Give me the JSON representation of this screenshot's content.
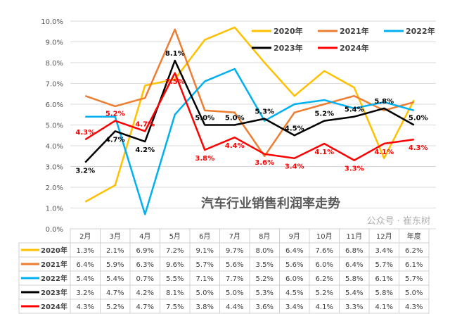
{
  "chart_data": {
    "type": "line",
    "title": "汽车行业销售利润率走势",
    "categories": [
      "2月",
      "3月",
      "4月",
      "5月",
      "6月",
      "7月",
      "8月",
      "9月",
      "10月",
      "11月",
      "12月",
      "年度"
    ],
    "ylim": [
      0,
      10
    ],
    "yticks": [
      "0.0%",
      "1.0%",
      "2.0%",
      "3.0%",
      "4.0%",
      "5.0%",
      "6.0%",
      "7.0%",
      "8.0%",
      "9.0%",
      "10.0%"
    ],
    "grid": true,
    "legend_placement": "top-right",
    "series": [
      {
        "name": "2020年",
        "color": "#FFC000",
        "values": [
          1.3,
          2.1,
          6.9,
          7.2,
          9.1,
          9.7,
          8.0,
          6.4,
          7.6,
          6.8,
          3.4,
          6.2
        ],
        "labels": [
          "1.3%",
          "2.1%",
          "6.9%",
          "7.2%",
          "9.1%",
          "9.7%",
          "8.0%",
          "6.4%",
          "7.6%",
          "6.8%",
          "3.4%",
          "6.2%"
        ],
        "show_data_labels": false
      },
      {
        "name": "2021年",
        "color": "#ED7D31",
        "values": [
          6.4,
          5.9,
          6.3,
          9.6,
          5.7,
          5.6,
          3.5,
          5.6,
          6.0,
          6.4,
          5.7,
          6.1
        ],
        "labels": [
          "6.4%",
          "5.9%",
          "6.3%",
          "9.6%",
          "5.7%",
          "5.6%",
          "3.5%",
          "5.6%",
          "6.0%",
          "6.4%",
          "5.7%",
          "6.1%"
        ],
        "show_data_labels": false
      },
      {
        "name": "2022年",
        "color": "#00B0F0",
        "values": [
          5.4,
          5.4,
          0.7,
          5.5,
          7.1,
          7.7,
          5.2,
          6.0,
          6.2,
          5.8,
          6.1,
          5.7
        ],
        "labels": [
          "5.4%",
          "5.4%",
          "0.7%",
          "5.5%",
          "7.1%",
          "7.7%",
          "5.2%",
          "6.0%",
          "6.2%",
          "5.8%",
          "6.1%",
          "5.7%"
        ],
        "show_data_labels": false
      },
      {
        "name": "2023年",
        "color": "#000000",
        "values": [
          3.2,
          4.7,
          4.2,
          8.1,
          5.0,
          5.0,
          5.3,
          4.5,
          5.2,
          5.4,
          5.8,
          5.0
        ],
        "labels": [
          "3.2%",
          "4.7%",
          "4.2%",
          "8.1%",
          "5.0%",
          "5.0%",
          "5.3%",
          "4.5%",
          "5.2%",
          "5.4%",
          "5.8%",
          "5.0%"
        ],
        "show_data_labels": true
      },
      {
        "name": "2024年",
        "color": "#FF0000",
        "values": [
          4.3,
          5.2,
          4.7,
          7.5,
          3.8,
          4.4,
          3.6,
          3.4,
          4.1,
          3.3,
          4.1,
          4.3
        ],
        "labels": [
          "4.3%",
          "5.2%",
          "4.7%",
          "7.5%",
          "3.8%",
          "4.4%",
          "3.6%",
          "3.4%",
          "4.1%",
          "3.3%",
          "4.1%",
          "4.3%"
        ],
        "show_data_labels": true
      }
    ]
  },
  "watermark": "公众号 · 崔东树"
}
